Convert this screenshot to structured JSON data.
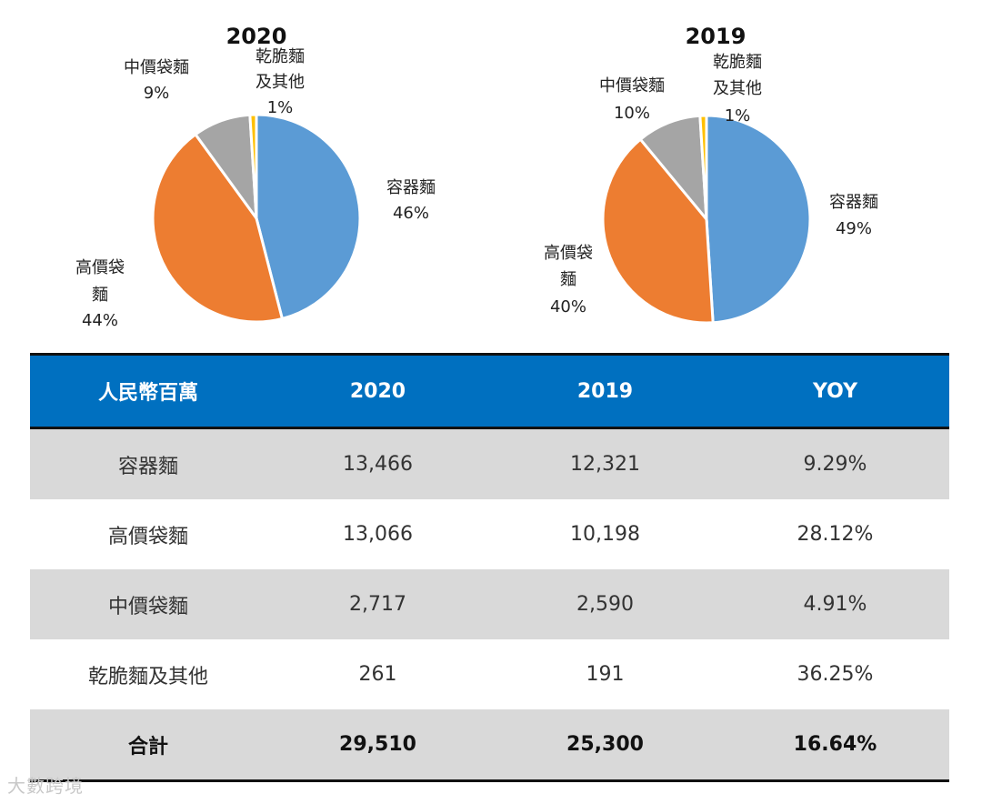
{
  "chart_data": [
    {
      "type": "pie",
      "title": "2020",
      "slices": [
        {
          "name": "容器麵",
          "value": 46,
          "label_pct": "46%",
          "color": "#5b9bd5"
        },
        {
          "name": "高價袋麵",
          "value": 44,
          "label_pct": "44%",
          "color": "#ed7d31"
        },
        {
          "name": "中價袋麵",
          "value": 9,
          "label_pct": "9%",
          "color": "#a5a5a5"
        },
        {
          "name": "乾脆麵及其他",
          "value": 1,
          "label_pct": "1%",
          "color": "#ffc000"
        }
      ]
    },
    {
      "type": "pie",
      "title": "2019",
      "slices": [
        {
          "name": "容器麵",
          "value": 49,
          "label_pct": "49%",
          "color": "#5b9bd5"
        },
        {
          "name": "高價袋麵",
          "value": 40,
          "label_pct": "40%",
          "color": "#ed7d31"
        },
        {
          "name": "中價袋麵",
          "value": 10,
          "label_pct": "10%",
          "color": "#a5a5a5"
        },
        {
          "name": "乾脆麵及其他",
          "value": 1,
          "label_pct": "1%",
          "color": "#ffc000"
        }
      ]
    }
  ],
  "table": {
    "header": [
      "人民幣百萬",
      "2020",
      "2019",
      "YOY"
    ],
    "header_color": "#0070c0",
    "rows": [
      [
        "容器麵",
        "13,466",
        "12,321",
        "9.29%"
      ],
      [
        "高價袋麵",
        "13,066",
        "10,198",
        "28.12%"
      ],
      [
        "中價袋麵",
        "2,717",
        "2,590",
        "4.91%"
      ],
      [
        "乾脆麵及其他",
        "261",
        "191",
        "36.25%"
      ]
    ],
    "total": [
      "合計",
      "29,510",
      "25,300",
      "16.64%"
    ]
  },
  "watermark": "大數跨境"
}
